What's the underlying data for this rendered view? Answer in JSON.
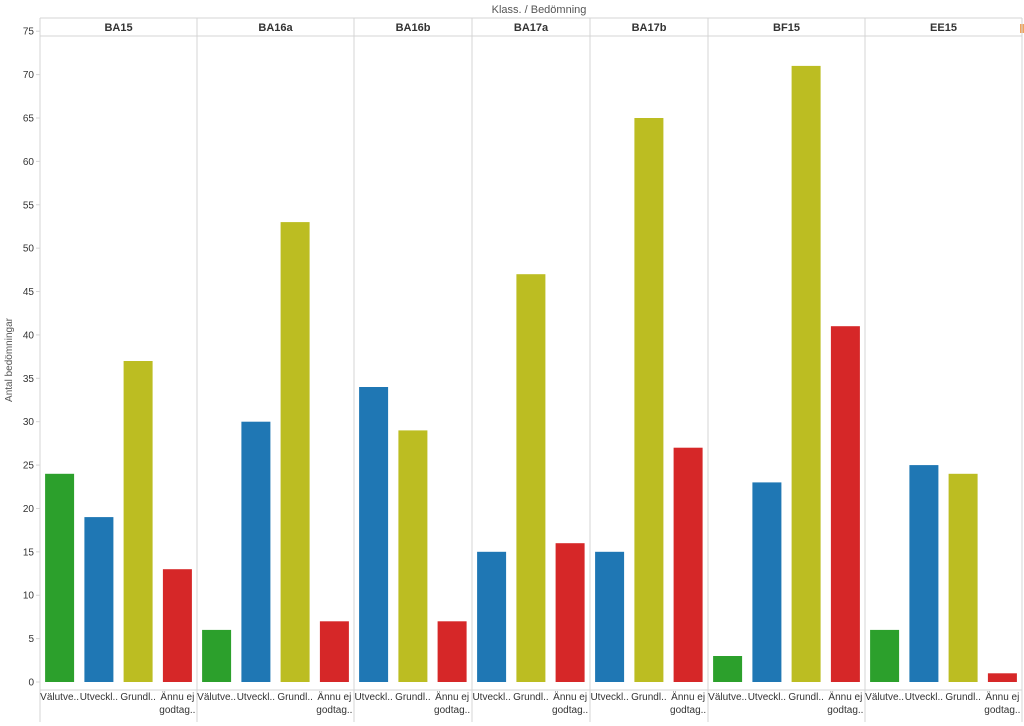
{
  "header": {
    "title": "Klass.  /  Bedömning"
  },
  "chart_data": {
    "type": "bar",
    "ylabel": "Antal bedömningar",
    "ylim": [
      0,
      75
    ],
    "yticks": [
      0,
      5,
      10,
      15,
      20,
      25,
      30,
      35,
      40,
      45,
      50,
      55,
      60,
      65,
      70,
      75
    ],
    "grid": false,
    "colors": {
      "Välutvecklat": "#2ca02c",
      "Utvecklat": "#1f77b4",
      "Grundläggande": "#bcbd22",
      "Ännu ej godtagbart": "#d62728"
    },
    "groups": [
      {
        "name": "BA15",
        "bars": [
          {
            "category": "Välutvecklat",
            "label": [
              "Välutve.."
            ],
            "value": 24
          },
          {
            "category": "Utvecklat",
            "label": [
              "Utveckl.."
            ],
            "value": 19
          },
          {
            "category": "Grundläggande",
            "label": [
              "Grundl.."
            ],
            "value": 37
          },
          {
            "category": "Ännu ej godtagbart",
            "label": [
              "Ännu ej",
              "godtag.."
            ],
            "value": 13
          }
        ]
      },
      {
        "name": "BA16a",
        "bars": [
          {
            "category": "Välutvecklat",
            "label": [
              "Välutve.."
            ],
            "value": 6
          },
          {
            "category": "Utvecklat",
            "label": [
              "Utveckl.."
            ],
            "value": 30
          },
          {
            "category": "Grundläggande",
            "label": [
              "Grundl.."
            ],
            "value": 53
          },
          {
            "category": "Ännu ej godtagbart",
            "label": [
              "Ännu ej",
              "godtag.."
            ],
            "value": 7
          }
        ]
      },
      {
        "name": "BA16b",
        "bars": [
          {
            "category": "Utvecklat",
            "label": [
              "Utveckl.."
            ],
            "value": 34
          },
          {
            "category": "Grundläggande",
            "label": [
              "Grundl.."
            ],
            "value": 29
          },
          {
            "category": "Ännu ej godtagbart",
            "label": [
              "Ännu ej",
              "godtag.."
            ],
            "value": 7
          }
        ]
      },
      {
        "name": "BA17a",
        "bars": [
          {
            "category": "Utvecklat",
            "label": [
              "Utveckl.."
            ],
            "value": 15
          },
          {
            "category": "Grundläggande",
            "label": [
              "Grundl.."
            ],
            "value": 47
          },
          {
            "category": "Ännu ej godtagbart",
            "label": [
              "Ännu ej",
              "godtag.."
            ],
            "value": 16
          }
        ]
      },
      {
        "name": "BA17b",
        "bars": [
          {
            "category": "Utvecklat",
            "label": [
              "Utveckl.."
            ],
            "value": 15
          },
          {
            "category": "Grundläggande",
            "label": [
              "Grundl.."
            ],
            "value": 65
          },
          {
            "category": "Ännu ej godtagbart",
            "label": [
              "Ännu ej",
              "godtag.."
            ],
            "value": 27
          }
        ]
      },
      {
        "name": "BF15",
        "bars": [
          {
            "category": "Välutvecklat",
            "label": [
              "Välutve.."
            ],
            "value": 3
          },
          {
            "category": "Utvecklat",
            "label": [
              "Utveckl.."
            ],
            "value": 23
          },
          {
            "category": "Grundläggande",
            "label": [
              "Grundl.."
            ],
            "value": 71
          },
          {
            "category": "Ännu ej godtagbart",
            "label": [
              "Ännu ej",
              "godtag.."
            ],
            "value": 41
          }
        ]
      },
      {
        "name": "EE15",
        "bars": [
          {
            "category": "Välutvecklat",
            "label": [
              "Välutve.."
            ],
            "value": 6
          },
          {
            "category": "Utvecklat",
            "label": [
              "Utveckl.."
            ],
            "value": 25
          },
          {
            "category": "Grundläggande",
            "label": [
              "Grundl.."
            ],
            "value": 24
          },
          {
            "category": "Ännu ej godtagbart",
            "label": [
              "Ännu ej",
              "godtag.."
            ],
            "value": 1
          }
        ]
      }
    ]
  }
}
